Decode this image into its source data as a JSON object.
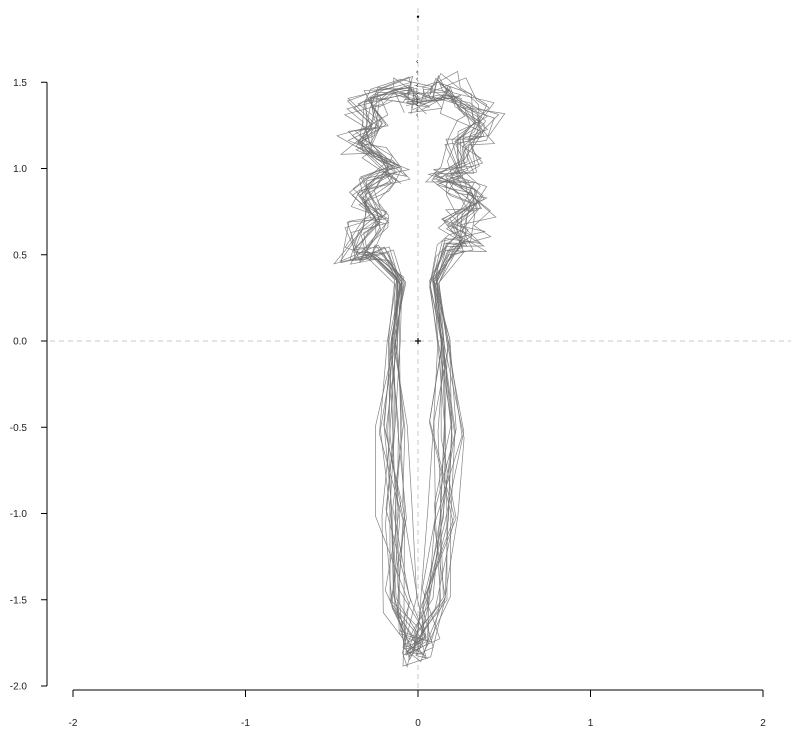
{
  "chart_data": {
    "type": "line",
    "title": "",
    "xlabel": "",
    "ylabel": "",
    "xlim": [
      -2,
      2
    ],
    "ylim": [
      -2,
      1.5
    ],
    "x_ticks": [
      -2,
      -1,
      0,
      1,
      2
    ],
    "x_tick_labels": [
      "-2",
      "-1",
      "0",
      "1",
      "2"
    ],
    "y_ticks": [
      -2,
      -1.5,
      -1,
      -0.5,
      0,
      0.5,
      1,
      1.5
    ],
    "y_tick_labels": [
      "-2.0",
      "-1.5",
      "-1.0",
      "-0.5",
      "0.0",
      "0.5",
      "1.0",
      "1.5"
    ],
    "guides": {
      "x": 0,
      "y": 0,
      "style": "dashed",
      "color": "#c8c8c8"
    },
    "center_marker": {
      "x": 0,
      "y": 0,
      "symbol": "+"
    },
    "top_point": {
      "x": 0,
      "y": 1.88
    },
    "line_color": "#6e6e6e",
    "grid": false,
    "legend": "none",
    "series_count": 20,
    "outline_base": [
      [
        0,
        1.4
      ],
      [
        0.08,
        1.42
      ],
      [
        0.18,
        1.48
      ],
      [
        0.24,
        1.38
      ],
      [
        0.38,
        1.3
      ],
      [
        0.34,
        1.22
      ],
      [
        0.22,
        1.16
      ],
      [
        0.26,
        1.02
      ],
      [
        0.15,
        0.95
      ],
      [
        0.28,
        0.9
      ],
      [
        0.32,
        0.78
      ],
      [
        0.22,
        0.7
      ],
      [
        0.3,
        0.58
      ],
      [
        0.18,
        0.54
      ],
      [
        0.1,
        0.35
      ],
      [
        0.15,
        0.0
      ],
      [
        0.17,
        -0.5
      ],
      [
        0.14,
        -1.0
      ],
      [
        0.1,
        -1.5
      ],
      [
        0.04,
        -1.75
      ],
      [
        0.0,
        -1.82
      ],
      [
        -0.04,
        -1.75
      ],
      [
        -0.1,
        -1.5
      ],
      [
        -0.14,
        -1.0
      ],
      [
        -0.16,
        -0.5
      ],
      [
        -0.14,
        0.0
      ],
      [
        -0.1,
        0.35
      ],
      [
        -0.2,
        0.52
      ],
      [
        -0.36,
        0.5
      ],
      [
        -0.3,
        0.66
      ],
      [
        -0.22,
        0.72
      ],
      [
        -0.3,
        0.82
      ],
      [
        -0.24,
        0.94
      ],
      [
        -0.12,
        0.98
      ],
      [
        -0.26,
        1.1
      ],
      [
        -0.34,
        1.16
      ],
      [
        -0.24,
        1.26
      ],
      [
        -0.3,
        1.38
      ],
      [
        -0.18,
        1.44
      ],
      [
        -0.08,
        1.46
      ],
      [
        0,
        1.4
      ]
    ],
    "landmark_y": [
      1.62,
      1.56,
      1.52,
      1.48,
      1.43,
      1.41,
      1.39,
      1.37,
      1.34,
      1.31
    ]
  }
}
